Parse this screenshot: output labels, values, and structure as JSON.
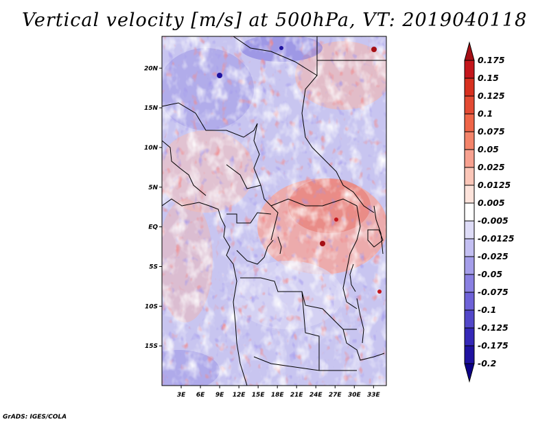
{
  "title": "Vertical velocity [m/s] at 500hPa, VT: 2019040118",
  "footer": "GrADS: IGES/COLA",
  "chart_data": {
    "type": "heatmap",
    "title": "Vertical velocity [m/s] at 500hPa, VT: 2019040118",
    "variable": "Vertical velocity",
    "units": "m/s",
    "level": "500hPa",
    "valid_time": "2019040118",
    "x_range": [
      0,
      35
    ],
    "y_range": [
      -20,
      24
    ],
    "x_ticks": [
      {
        "value": 3,
        "label": "3E"
      },
      {
        "value": 6,
        "label": "6E"
      },
      {
        "value": 9,
        "label": "9E"
      },
      {
        "value": 12,
        "label": "12E"
      },
      {
        "value": 15,
        "label": "15E"
      },
      {
        "value": 18,
        "label": "18E"
      },
      {
        "value": 21,
        "label": "21E"
      },
      {
        "value": 24,
        "label": "24E"
      },
      {
        "value": 27,
        "label": "27E"
      },
      {
        "value": 30,
        "label": "30E"
      },
      {
        "value": 33,
        "label": "33E"
      }
    ],
    "y_ticks": [
      {
        "value": 20,
        "label": "20N"
      },
      {
        "value": 15,
        "label": "15N"
      },
      {
        "value": 10,
        "label": "10N"
      },
      {
        "value": 5,
        "label": "5N"
      },
      {
        "value": 0,
        "label": "EQ"
      },
      {
        "value": -5,
        "label": "5S"
      },
      {
        "value": -10,
        "label": "10S"
      },
      {
        "value": -15,
        "label": "15S"
      }
    ],
    "colorbar": {
      "levels": [
        "0.175",
        "0.15",
        "0.125",
        "0.1",
        "0.075",
        "0.05",
        "0.025",
        "0.0125",
        "0.005",
        "-0.005",
        "-0.0125",
        "-0.025",
        "-0.05",
        "-0.075",
        "-0.1",
        "-0.125",
        "-0.175",
        "-0.2"
      ],
      "colors": [
        "#a50f15",
        "#c4161c",
        "#d7301f",
        "#e34a33",
        "#ef6548",
        "#f4846a",
        "#f7a190",
        "#fbc6b8",
        "#fde3db",
        "#ffffff",
        "#dedcf7",
        "#c3bff2",
        "#a59eea",
        "#8a80e2",
        "#6e62d8",
        "#5247c9",
        "#3528b8",
        "#1f12a0",
        "#0c0086"
      ]
    },
    "features": {
      "positive_regions": "Dominant positive (red) vertical velocity over central/eastern Central Africa (~18E-30E, 6N-2S) and patches over northeast and west coast.",
      "negative_regions": "Widespread negative (blue) vertical velocity over the Gulf of Guinea / Atlantic (west), the Sahara (north) and southern Africa."
    }
  }
}
